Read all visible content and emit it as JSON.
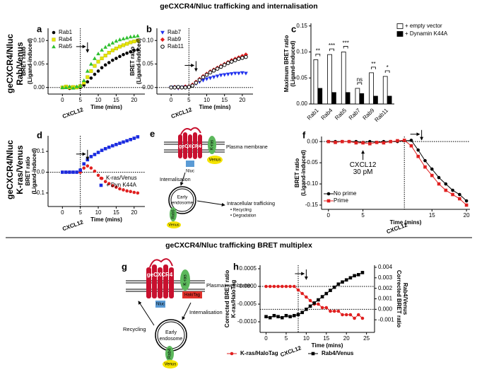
{
  "titles": {
    "top": "geCXCR4/Nluc trafficking and internalisation",
    "bottom": "geCXCR4/Nluc trafficking BRET multiplex"
  },
  "row_labels": [
    [
      "geCXCR4/Nluc",
      "Rab/Venus"
    ],
    [
      "geCXCR4/Nluc",
      "K-ras/Venus"
    ]
  ],
  "chart_data": [
    {
      "panel": "a",
      "type": "scatter",
      "ylabel": [
        "BRET ratio",
        "(Ligand-induced)"
      ],
      "xlabel": "Time (mins)",
      "x": [
        0,
        1,
        2,
        3,
        4,
        5,
        6,
        7,
        8,
        9,
        10,
        11,
        12,
        13,
        14,
        15,
        16,
        17,
        18,
        19,
        20,
        21
      ],
      "series": [
        {
          "name": "Rab1",
          "color": "#000000",
          "marker": "circle",
          "values": [
            0,
            0,
            -0.002,
            0,
            0.001,
            0,
            0.005,
            0.012,
            0.02,
            0.028,
            0.035,
            0.042,
            0.048,
            0.053,
            0.058,
            0.062,
            0.066,
            0.07,
            0.073,
            0.076,
            0.079,
            0.08
          ]
        },
        {
          "name": "Rab4",
          "color": "#e6e600",
          "marker": "square",
          "values": [
            0,
            0.002,
            0,
            0.001,
            0,
            0.003,
            0.01,
            0.022,
            0.035,
            0.046,
            0.055,
            0.062,
            0.068,
            0.074,
            0.079,
            0.083,
            0.087,
            0.09,
            0.093,
            0.096,
            0.098,
            0.1
          ]
        },
        {
          "name": "Rab5",
          "color": "#2fbf2f",
          "marker": "triangle",
          "values": [
            0,
            0,
            0.002,
            -0.001,
            0.002,
            0.004,
            0.015,
            0.035,
            0.05,
            0.062,
            0.072,
            0.08,
            0.086,
            0.091,
            0.095,
            0.099,
            0.102,
            0.104,
            0.106,
            0.108,
            0.109,
            0.11
          ]
        }
      ],
      "xlim": [
        -4,
        23
      ],
      "ylim": [
        -0.014,
        0.126
      ],
      "xticks": [
        0,
        5,
        10,
        15,
        20
      ],
      "yticks": [
        {
          "value": 0,
          "label": "0.00"
        },
        0.05,
        {
          "value": 0.1,
          "label": "0.10"
        }
      ],
      "vlines": [
        5
      ],
      "hlines": [
        0
      ],
      "arrow": {
        "x": 7,
        "y": 0.075
      },
      "annotations": [
        {
          "text": "CXCL12",
          "x": 5
        }
      ],
      "legend": "upper left"
    },
    {
      "panel": "b",
      "type": "scatter",
      "ylabel": [
        "BRET ratio",
        "(Ligand-induced)"
      ],
      "xlabel": "Time (mins)",
      "x": [
        0,
        1,
        2,
        3,
        4,
        5,
        6,
        7,
        8,
        9,
        10,
        11,
        12,
        13,
        14,
        15,
        16,
        17,
        18,
        19,
        20,
        21
      ],
      "series": [
        {
          "name": "Rab7",
          "color": "#2233ee",
          "marker": "triangle-down",
          "values": [
            0,
            0,
            -0.002,
            0,
            0.001,
            0,
            0.004,
            0.008,
            0.012,
            0.015,
            0.018,
            0.02,
            0.022,
            0.024,
            0.026,
            0.027,
            0.028,
            0.029,
            0.03,
            0.03,
            0.031,
            0.03
          ]
        },
        {
          "name": "Rab9",
          "color": "#e02020",
          "marker": "diamond",
          "values": [
            0,
            0.001,
            0,
            0,
            0.002,
            0.002,
            0.006,
            0.012,
            0.018,
            0.024,
            0.029,
            0.034,
            0.038,
            0.042,
            0.046,
            0.05,
            0.054,
            0.058,
            0.061,
            0.064,
            0.067,
            0.07
          ]
        },
        {
          "name": "Rab11",
          "color": "#000000",
          "marker": "open-circle",
          "values": [
            0,
            0,
            0.001,
            0,
            0,
            0.001,
            0.004,
            0.01,
            0.016,
            0.022,
            0.027,
            0.032,
            0.036,
            0.04,
            0.044,
            0.048,
            0.052,
            0.055,
            0.058,
            0.061,
            0.063,
            0.065
          ]
        }
      ],
      "xlim": [
        -4,
        23
      ],
      "ylim": [
        -0.014,
        0.126
      ],
      "xticks": [
        0,
        5,
        10,
        15,
        20
      ],
      "yticks": [
        {
          "value": 0,
          "label": "0.00"
        },
        0.05,
        {
          "value": 0.1,
          "label": "0.10"
        }
      ],
      "vlines": [
        5
      ],
      "hlines": [
        0
      ],
      "arrow": {
        "x": 7,
        "y": 0.035
      },
      "annotations": [
        {
          "text": "CXCL12",
          "x": 5
        }
      ],
      "legend": "upper left"
    },
    {
      "panel": "c",
      "type": "bar",
      "ylabel": [
        "Maximum BRET ratio",
        "(Ligand-induced)"
      ],
      "categories": [
        "Rab1",
        "Rab4",
        "Rab5",
        "Rab7",
        "Rab9",
        "Rab11"
      ],
      "series": [
        {
          "name": "+ empty vector",
          "color": "#ffffff",
          "values": [
            0.085,
            0.095,
            0.1,
            0.03,
            0.06,
            0.053
          ]
        },
        {
          "name": "+ Dynamin K44A",
          "color": "#000000",
          "values": [
            0.03,
            0.022,
            0.022,
            0.02,
            0.015,
            0.015
          ]
        }
      ],
      "sig_labels": [
        "**",
        "***",
        "***",
        "ns",
        "**",
        "*"
      ],
      "ylim": [
        0,
        0.155
      ],
      "yticks": [
        {
          "value": 0,
          "label": "0.00"
        },
        0.05,
        {
          "value": 0.1,
          "label": "0.10"
        },
        0.15
      ],
      "legend": "right"
    },
    {
      "panel": "d",
      "type": "scatter",
      "ylabel": [
        "BRET ratio",
        "(Ligand-induced)"
      ],
      "xlabel": "Time (mins)",
      "x": [
        0,
        1,
        2,
        3,
        4,
        5,
        6,
        7,
        8,
        9,
        10,
        11,
        12,
        13,
        14,
        15,
        16,
        17,
        18,
        19,
        20,
        21
      ],
      "series": [
        {
          "name": "K-ras/Venus",
          "color": "#e02020",
          "marker": "circle",
          "values": [
            0,
            0,
            0,
            0,
            0,
            0,
            0.02,
            0.03,
            0.02,
            0.005,
            -0.015,
            -0.03,
            -0.045,
            -0.055,
            -0.065,
            -0.072,
            -0.08,
            -0.085,
            -0.09,
            -0.093,
            -0.097,
            -0.1
          ]
        },
        {
          "name": "+ Dyn K44A",
          "color": "#1a2be0",
          "marker": "square",
          "values": [
            0,
            0,
            0,
            0,
            0,
            0.01,
            0.04,
            0.06,
            0.075,
            0.085,
            0.095,
            0.105,
            0.113,
            0.12,
            0.127,
            0.133,
            0.139,
            0.145,
            0.151,
            0.157,
            0.163,
            0.17
          ]
        }
      ],
      "xlim": [
        -4,
        23
      ],
      "ylim": [
        -0.165,
        0.175
      ],
      "xticks": [
        0,
        5,
        10,
        15,
        20
      ],
      "yticks": [
        0.1,
        {
          "value": 0,
          "label": "0.0"
        },
        -0.1
      ],
      "vlines": [
        5
      ],
      "hlines": [
        0
      ],
      "arrow": {
        "x": 7,
        "y": 0.06
      },
      "annotations": [
        {
          "text": "CXCL12",
          "x": 5
        }
      ],
      "legend": "lower right"
    },
    {
      "panel": "f",
      "type": "scatter",
      "connect": true,
      "ylabel": [
        "BRET ratio",
        "(Ligand-induced)"
      ],
      "xlabel": "Time (mins)",
      "x": [
        0,
        1,
        2,
        3,
        4,
        5,
        6,
        7,
        8,
        9,
        10,
        11,
        12,
        13,
        14,
        15,
        16,
        17,
        18,
        19,
        20
      ],
      "series": [
        {
          "name": "No prime",
          "color": "#000000",
          "marker": "circle",
          "values": [
            0,
            0,
            0,
            0,
            0,
            -0.002,
            0,
            -0.002,
            0,
            0,
            0,
            0.002,
            0.003,
            -0.02,
            -0.045,
            -0.065,
            -0.085,
            -0.1,
            -0.115,
            -0.125,
            -0.14
          ]
        },
        {
          "name": "Prime",
          "color": "#e02020",
          "marker": "square",
          "values": [
            0,
            -0.002,
            0,
            0,
            -0.003,
            -0.003,
            -0.005,
            -0.002,
            -0.003,
            0,
            0.002,
            0.003,
            -0.01,
            -0.035,
            -0.06,
            -0.08,
            -0.1,
            -0.115,
            -0.125,
            -0.135,
            -0.15
          ]
        }
      ],
      "xlim": [
        -1,
        20.5
      ],
      "ylim": [
        -0.16,
        0.012
      ],
      "xticks": [
        0,
        5,
        15,
        20
      ],
      "yticks": [
        {
          "value": 0,
          "label": "0.00"
        },
        -0.05,
        {
          "value": -0.1,
          "label": "-0.10"
        },
        -0.15
      ],
      "vlines": [
        11
      ],
      "hlines": [
        0
      ],
      "arrow": {
        "x": 13.5,
        "y": 0.004
      },
      "annotations": [
        {
          "text": "CXCL12",
          "x": 11
        },
        {
          "text": [
            "CXCL12",
            "30 pM"
          ],
          "x": 5,
          "y": -0.055
        }
      ],
      "legend": "lower left"
    },
    {
      "panel": "h",
      "type": "scatter",
      "connect": true,
      "ylabel": [
        "Corrected BRET ratio",
        "K-ras/HaloTag"
      ],
      "y2label": [
        "Corrected BRET ratio",
        "Rab4/Venus"
      ],
      "xlabel": "Time (mins)",
      "x": [
        0,
        1,
        2,
        3,
        4,
        5,
        6,
        7,
        8,
        9,
        10,
        11,
        12,
        13,
        14,
        15,
        16,
        17,
        18,
        19,
        20,
        21,
        22,
        23,
        24
      ],
      "series": [
        {
          "name": "K-ras/HaloTag",
          "color": "#e02020",
          "marker": "circle",
          "values": [
            0,
            0,
            0,
            0,
            0,
            0,
            0,
            0,
            -0.0001,
            -0.0002,
            -0.0003,
            -0.0004,
            -0.0005,
            -0.0005,
            -0.0006,
            -0.0006,
            -0.0007,
            -0.0007,
            -0.0007,
            -0.0008,
            -0.0008,
            -0.0008,
            -0.0009,
            -0.0008,
            -0.0009
          ]
        },
        {
          "name": "Rab4/Venus",
          "color": "#000000",
          "marker": "square",
          "axis": "y2",
          "values": [
            -0.0007,
            -0.0008,
            -0.0006,
            -0.0007,
            -0.0008,
            -0.0006,
            -0.0007,
            -0.0006,
            -0.0005,
            -0.0003,
            0,
            0.0003,
            0.0006,
            0.0009,
            0.0012,
            0.0015,
            0.0018,
            0.0021,
            0.0024,
            0.0026,
            0.0028,
            0.003,
            0.0032,
            0.0033,
            0.0035
          ]
        }
      ],
      "xlim": [
        -1.5,
        27
      ],
      "ylim": [
        -0.0013,
        0.0006
      ],
      "y2lim": [
        -0.0022,
        0.0042
      ],
      "xticks": [
        0,
        5,
        10,
        15,
        20,
        25
      ],
      "yticks": [
        0.0005,
        {
          "value": 0,
          "label": "0.0000"
        },
        -0.0005,
        {
          "value": -0.001,
          "label": "-0.0010"
        }
      ],
      "y2ticks": [
        0.004,
        0.003,
        0.002,
        0.001,
        {
          "value": 0,
          "label": "0.000"
        },
        -0.001
      ],
      "vlines": [
        8
      ],
      "hlines": [
        0
      ],
      "y2hlines": [
        0
      ],
      "arrow": {
        "x": 10,
        "y": 0.0002
      },
      "annotations": [
        {
          "text": "CXCL12",
          "x": 8
        }
      ],
      "legend": "bottom"
    }
  ],
  "diagram_e": {
    "panel": "e",
    "receptor": "geCXCR4",
    "kras": "K-ras",
    "venus": "Venus",
    "nluc": "Nluc",
    "membrane": "Plasma membrane",
    "internalisation": "Internalisation",
    "endosome": [
      "Early",
      "endosome"
    ],
    "rab": "Rab5",
    "venus2": "Venus",
    "trafficking": "Intracellular trafficking",
    "items": [
      "• Recycling",
      "• Degradation"
    ]
  },
  "diagram_g": {
    "panel": "g",
    "receptor": "geCXCR4",
    "kras": "K-ras",
    "halotag": "HaloTag",
    "nluc": "Nluc",
    "membrane": "Plasma membrane",
    "internalisation": "Internalisation",
    "recycling": "Recycling",
    "endosome": [
      "Early",
      "endosome"
    ],
    "rab": "Rab4",
    "venus": "Venus"
  }
}
